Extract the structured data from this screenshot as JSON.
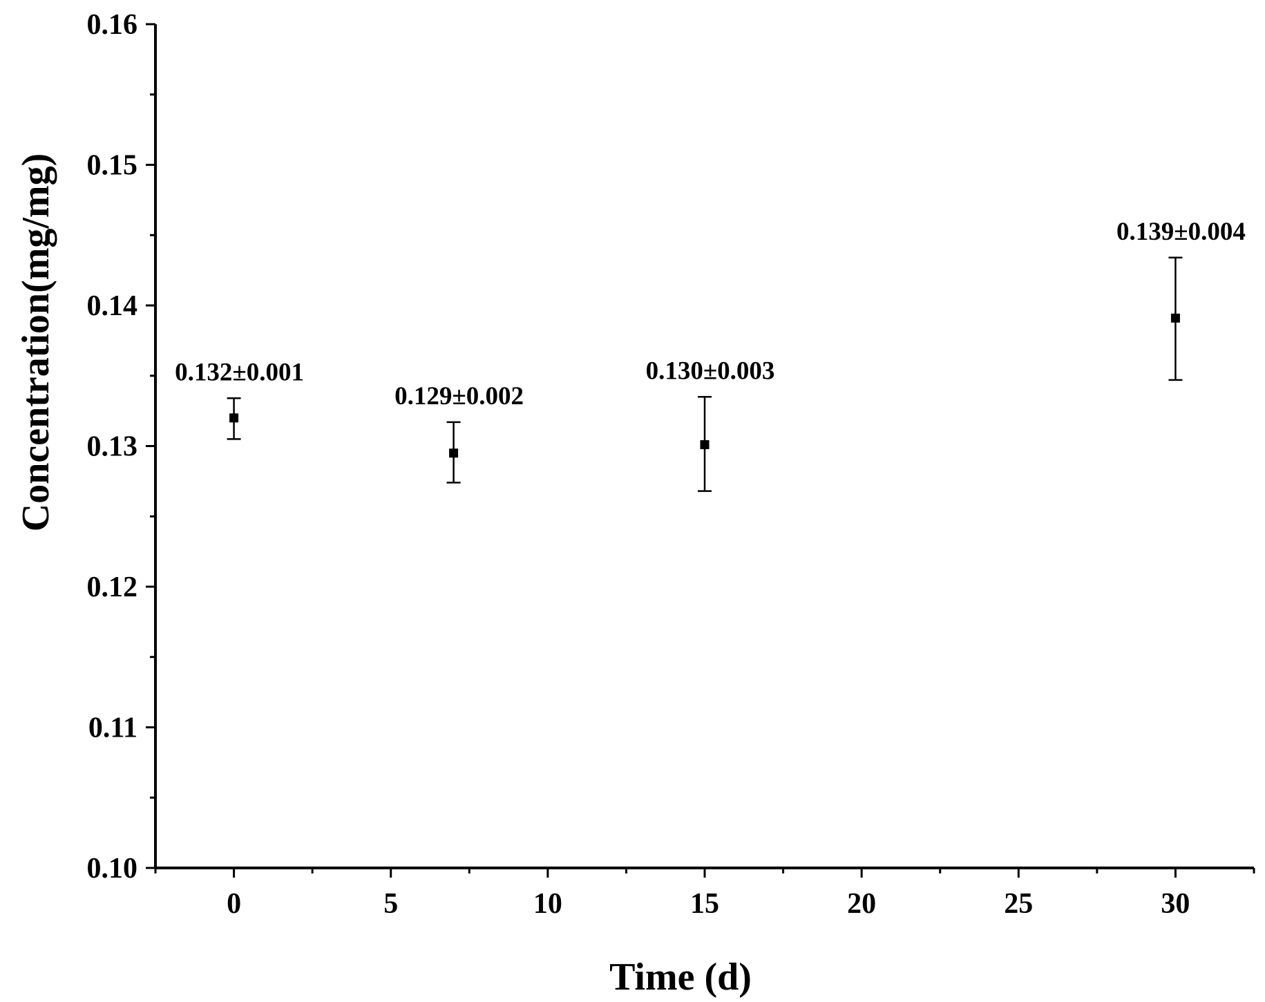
{
  "chart_data": {
    "type": "scatter",
    "title": "",
    "xlabel": "Time (d)",
    "ylabel": "Concentration(mg/mg)",
    "xlim": [
      -2.5,
      32.5
    ],
    "ylim": [
      0.1,
      0.16
    ],
    "x_ticks": [
      0,
      5,
      10,
      15,
      20,
      25,
      30
    ],
    "x_tick_labels": [
      "0",
      "5",
      "10",
      "15",
      "20",
      "25",
      "30"
    ],
    "y_ticks": [
      0.1,
      0.11,
      0.12,
      0.13,
      0.14,
      0.15,
      0.16
    ],
    "y_tick_labels": [
      "0.10",
      "0.11",
      "0.12",
      "0.13",
      "0.14",
      "0.15",
      "0.16"
    ],
    "grid": false,
    "series": [
      {
        "points": [
          {
            "x": 0,
            "y": 0.132,
            "err_low": 0.1305,
            "err_high": 0.1334,
            "label": "0.132±0.001"
          },
          {
            "x": 7,
            "y": 0.1295,
            "err_low": 0.1274,
            "err_high": 0.1317,
            "label": "0.129±0.002"
          },
          {
            "x": 15,
            "y": 0.1301,
            "err_low": 0.1268,
            "err_high": 0.1335,
            "label": "0.130±0.003"
          },
          {
            "x": 30,
            "y": 0.1391,
            "err_low": 0.1347,
            "err_high": 0.1434,
            "label": "0.139±0.004"
          }
        ]
      }
    ],
    "colors": {
      "marker": "#000000",
      "axis": "#000000"
    }
  }
}
